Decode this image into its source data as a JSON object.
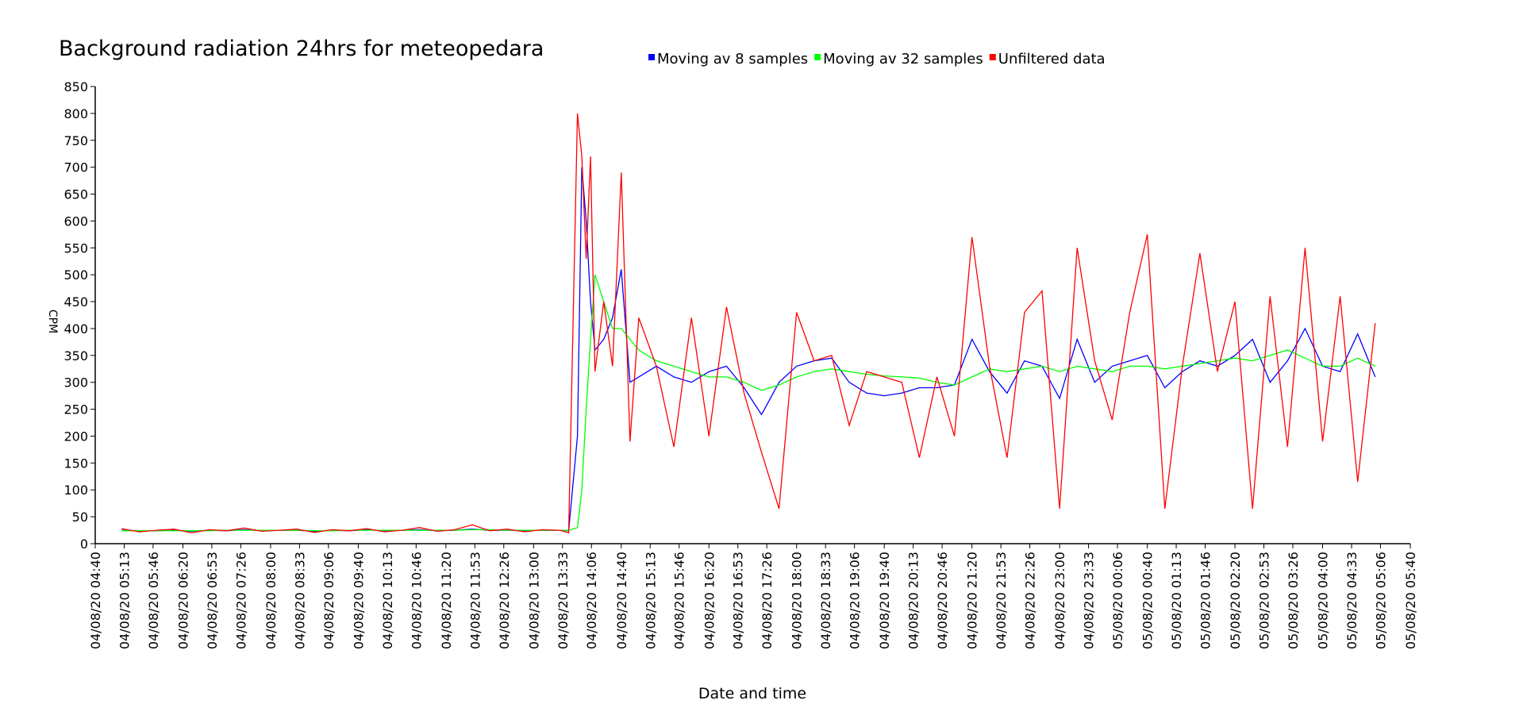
{
  "chart_data": {
    "type": "line",
    "title": "Background radiation 24hrs for meteopedara",
    "x_label": "Date and time",
    "y_label": "CPM",
    "legend": "top",
    "grid": false,
    "ylim": [
      0,
      850
    ],
    "yticks": [
      0,
      50,
      100,
      150,
      200,
      250,
      300,
      350,
      400,
      450,
      500,
      550,
      600,
      650,
      700,
      750,
      800,
      850
    ],
    "xlim": [
      "04/08/20 04:40",
      "05/08/20 05:40"
    ],
    "xticks": [
      "04/08/20 04:40",
      "04/08/20 05:13",
      "04/08/20 05:46",
      "04/08/20 06:20",
      "04/08/20 06:53",
      "04/08/20 07:26",
      "04/08/20 08:00",
      "04/08/20 08:33",
      "04/08/20 09:06",
      "04/08/20 09:40",
      "04/08/20 10:13",
      "04/08/20 10:46",
      "04/08/20 11:20",
      "04/08/20 11:53",
      "04/08/20 12:26",
      "04/08/20 13:00",
      "04/08/20 13:33",
      "04/08/20 14:06",
      "04/08/20 14:40",
      "04/08/20 15:13",
      "04/08/20 15:46",
      "04/08/20 16:20",
      "04/08/20 16:53",
      "04/08/20 17:26",
      "04/08/20 18:00",
      "04/08/20 18:33",
      "04/08/20 19:06",
      "04/08/20 19:40",
      "04/08/20 20:13",
      "04/08/20 20:46",
      "04/08/20 21:20",
      "04/08/20 21:53",
      "04/08/20 22:26",
      "04/08/20 23:00",
      "04/08/20 23:33",
      "05/08/20 00:06",
      "05/08/20 00:40",
      "05/08/20 01:13",
      "05/08/20 01:46",
      "05/08/20 02:20",
      "05/08/20 02:53",
      "05/08/20 03:26",
      "05/08/20 04:00",
      "05/08/20 04:33",
      "05/08/20 05:06",
      "05/08/20 05:40"
    ],
    "x": [
      "04/08/20 05:10",
      "04/08/20 05:30",
      "04/08/20 05:50",
      "04/08/20 06:10",
      "04/08/20 06:30",
      "04/08/20 06:50",
      "04/08/20 07:10",
      "04/08/20 07:30",
      "04/08/20 07:50",
      "04/08/20 08:10",
      "04/08/20 08:30",
      "04/08/20 08:50",
      "04/08/20 09:10",
      "04/08/20 09:30",
      "04/08/20 09:50",
      "04/08/20 10:10",
      "04/08/20 10:30",
      "04/08/20 10:50",
      "04/08/20 11:10",
      "04/08/20 11:30",
      "04/08/20 11:50",
      "04/08/20 12:10",
      "04/08/20 12:30",
      "04/08/20 12:50",
      "04/08/20 13:10",
      "04/08/20 13:30",
      "04/08/20 13:40",
      "04/08/20 13:50",
      "04/08/20 13:55",
      "04/08/20 14:00",
      "04/08/20 14:05",
      "04/08/20 14:10",
      "04/08/20 14:20",
      "04/08/20 14:30",
      "04/08/20 14:40",
      "04/08/20 14:50",
      "04/08/20 15:00",
      "04/08/20 15:20",
      "04/08/20 15:40",
      "04/08/20 16:00",
      "04/08/20 16:20",
      "04/08/20 16:40",
      "04/08/20 17:00",
      "04/08/20 17:20",
      "04/08/20 17:40",
      "04/08/20 18:00",
      "04/08/20 18:20",
      "04/08/20 18:40",
      "04/08/20 19:00",
      "04/08/20 19:20",
      "04/08/20 19:40",
      "04/08/20 20:00",
      "04/08/20 20:20",
      "04/08/20 20:40",
      "04/08/20 21:00",
      "04/08/20 21:20",
      "04/08/20 21:40",
      "04/08/20 22:00",
      "04/08/20 22:20",
      "04/08/20 22:40",
      "04/08/20 23:00",
      "04/08/20 23:20",
      "04/08/20 23:40",
      "05/08/20 00:00",
      "05/08/20 00:20",
      "05/08/20 00:40",
      "05/08/20 01:00",
      "05/08/20 01:20",
      "05/08/20 01:40",
      "05/08/20 02:00",
      "05/08/20 02:20",
      "05/08/20 02:40",
      "05/08/20 03:00",
      "05/08/20 03:20",
      "05/08/20 03:40",
      "05/08/20 04:00",
      "05/08/20 04:20",
      "05/08/20 04:40",
      "05/08/20 05:00"
    ],
    "series": [
      {
        "name": "Moving av 8 samples",
        "color": "#0000ff",
        "values": [
          25,
          24,
          24,
          25,
          23,
          25,
          24,
          26,
          24,
          25,
          25,
          23,
          25,
          24,
          26,
          24,
          25,
          26,
          24,
          25,
          27,
          25,
          25,
          24,
          25,
          25,
          24,
          200,
          700,
          600,
          450,
          360,
          380,
          420,
          510,
          300,
          310,
          330,
          310,
          300,
          320,
          330,
          290,
          240,
          300,
          330,
          340,
          345,
          300,
          280,
          275,
          280,
          290,
          290,
          295,
          380,
          320,
          280,
          340,
          330,
          270,
          380,
          300,
          330,
          340,
          350,
          290,
          320,
          340,
          330,
          350,
          380,
          300,
          340,
          400,
          330,
          320,
          390,
          310
        ]
      },
      {
        "name": "Moving av 32 samples",
        "color": "#00ff00",
        "values": [
          24,
          24,
          24,
          24,
          24,
          24,
          25,
          25,
          25,
          25,
          25,
          24,
          24,
          25,
          25,
          25,
          25,
          25,
          25,
          25,
          26,
          26,
          25,
          25,
          25,
          25,
          25,
          30,
          100,
          250,
          380,
          500,
          450,
          400,
          400,
          380,
          360,
          340,
          330,
          320,
          310,
          310,
          300,
          285,
          295,
          310,
          320,
          325,
          320,
          315,
          312,
          310,
          308,
          300,
          295,
          310,
          325,
          320,
          325,
          330,
          320,
          330,
          325,
          320,
          330,
          330,
          325,
          330,
          335,
          340,
          345,
          340,
          350,
          360,
          345,
          330,
          330,
          345,
          330
        ]
      },
      {
        "name": "Unfiltered data",
        "color": "#ff0000",
        "values": [
          28,
          22,
          25,
          27,
          20,
          26,
          24,
          29,
          23,
          25,
          27,
          21,
          26,
          24,
          28,
          22,
          25,
          30,
          23,
          26,
          35,
          24,
          27,
          22,
          26,
          25,
          20,
          800,
          720,
          530,
          720,
          320,
          450,
          330,
          690,
          190,
          420,
          330,
          180,
          420,
          200,
          440,
          280,
          170,
          65,
          430,
          340,
          350,
          220,
          320,
          310,
          300,
          160,
          310,
          200,
          570,
          330,
          160,
          430,
          470,
          65,
          550,
          340,
          230,
          430,
          575,
          65,
          330,
          540,
          320,
          450,
          65,
          460,
          180,
          550,
          190,
          460,
          115,
          410
        ]
      }
    ]
  }
}
